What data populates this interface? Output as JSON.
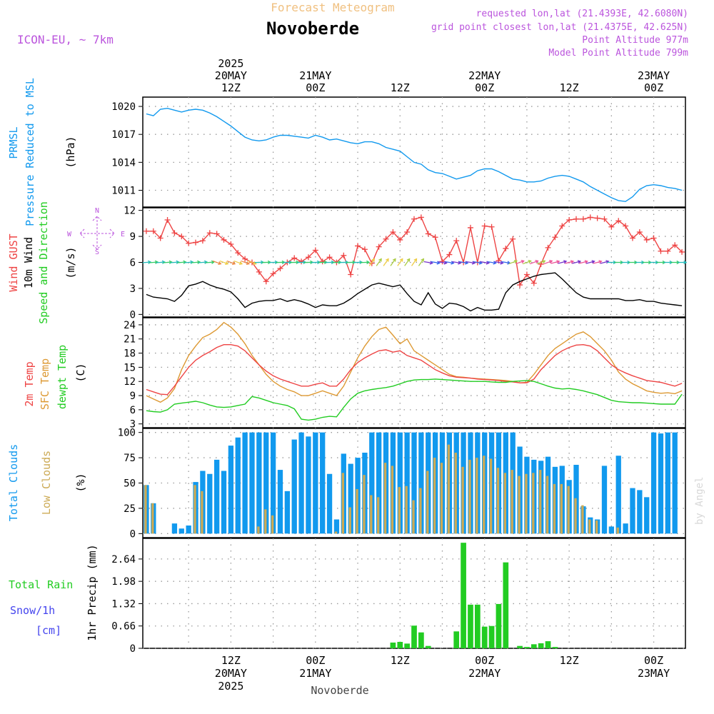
{
  "header": {
    "title": "Novoberde",
    "subtitle": "Forecast Meteogram",
    "model": "ICON-EU, ~ 7km",
    "requested": "requested lon,lat (21.4393E, 42.6080N)",
    "gridpoint": "grid point closest lon,lat (21.4375E, 42.625N)",
    "point_alt": "Point Altitude 977m",
    "model_alt": "Model Point Altitude 799m",
    "footer": "Novoberde",
    "credit": "by Angel"
  },
  "colors": {
    "pressure": "#1199ee",
    "gust": "#ee4444",
    "wind": "#000000",
    "temp2m": "#ee4444",
    "sfc": "#dd9933",
    "dewpt": "#22cc22",
    "total": "#1199ee",
    "low": "#ccaa55",
    "rain": "#22cc22",
    "snow": "#4444ee",
    "purple": "#bb55dd",
    "title_orange": "#f0c080"
  },
  "chart_data": {
    "type": "meteogram",
    "time": {
      "start": "2025-05-20 00Z",
      "step_hours": 1,
      "count": 77,
      "top_labels": [
        {
          "hour": 12,
          "lines": [
            "2025",
            "20MAY",
            "12Z"
          ]
        },
        {
          "hour": 24,
          "lines": [
            "21MAY",
            "00Z"
          ]
        },
        {
          "hour": 36,
          "lines": [
            "12Z"
          ]
        },
        {
          "hour": 48,
          "lines": [
            "22MAY",
            "00Z"
          ]
        },
        {
          "hour": 60,
          "lines": [
            "12Z"
          ]
        },
        {
          "hour": 72,
          "lines": [
            "23MAY",
            "00Z"
          ]
        }
      ],
      "bottom_labels": [
        {
          "hour": 12,
          "lines": [
            "12Z",
            "20MAY",
            "2025"
          ]
        },
        {
          "hour": 24,
          "lines": [
            "00Z",
            "21MAY"
          ]
        },
        {
          "hour": 36,
          "lines": [
            "12Z"
          ]
        },
        {
          "hour": 48,
          "lines": [
            "00Z",
            "22MAY"
          ]
        },
        {
          "hour": 60,
          "lines": [
            "12Z"
          ]
        },
        {
          "hour": 72,
          "lines": [
            "00Z",
            "23MAY"
          ]
        }
      ]
    },
    "panels": [
      {
        "id": "pressure",
        "unit": "(hPa)",
        "ylim": [
          1009.2,
          1021
        ],
        "yticks": [
          "1020",
          "1017",
          "1014",
          "1011"
        ],
        "labels": [
          "PRMSL",
          "Pressure Reduced to MSL"
        ],
        "series": [
          {
            "name": "PRMSL",
            "color": "#1199ee",
            "style": "line",
            "values": [
              1019.2,
              1019.0,
              1019.7,
              1019.8,
              1019.6,
              1019.4,
              1019.6,
              1019.7,
              1019.6,
              1019.3,
              1018.9,
              1018.4,
              1017.9,
              1017.3,
              1016.7,
              1016.4,
              1016.3,
              1016.4,
              1016.7,
              1016.9,
              1016.9,
              1016.8,
              1016.7,
              1016.6,
              1016.9,
              1016.7,
              1016.4,
              1016.5,
              1016.3,
              1016.1,
              1016.0,
              1016.2,
              1016.2,
              1016.0,
              1015.6,
              1015.4,
              1015.2,
              1014.6,
              1014.0,
              1013.8,
              1013.2,
              1012.9,
              1012.8,
              1012.5,
              1012.2,
              1012.4,
              1012.6,
              1013.1,
              1013.3,
              1013.3,
              1013.0,
              1012.6,
              1012.2,
              1012.1,
              1011.9,
              1011.9,
              1012.0,
              1012.3,
              1012.5,
              1012.6,
              1012.5,
              1012.2,
              1011.9,
              1011.4,
              1011.0,
              1010.6,
              1010.2,
              1009.9,
              1009.8,
              1010.3,
              1011.1,
              1011.5,
              1011.6,
              1011.5,
              1011.3,
              1011.2,
              1011.0
            ]
          }
        ]
      },
      {
        "id": "wind",
        "unit": "(m/s)",
        "ylim": [
          -0.3,
          12.3
        ],
        "yticks": [
          "12",
          "9",
          "6",
          "3",
          "0"
        ],
        "labels": [
          "Wind GUST",
          "10m Wind",
          "Speed and Direction"
        ],
        "compass": {
          "n": "N",
          "w": "W",
          "e": "E",
          "s": "S"
        },
        "series": [
          {
            "name": "Wind GUST",
            "color": "#ee4444",
            "style": "line-plus",
            "values": [
              9.6,
              9.6,
              8.8,
              10.9,
              9.4,
              9.0,
              8.2,
              8.3,
              8.5,
              9.4,
              9.3,
              8.6,
              8.1,
              7.1,
              6.4,
              6.0,
              4.9,
              3.8,
              4.7,
              5.3,
              6.0,
              6.5,
              6.1,
              6.6,
              7.4,
              6.1,
              6.6,
              6.0,
              6.8,
              4.6,
              7.9,
              7.5,
              5.9,
              7.8,
              8.7,
              9.5,
              8.6,
              9.5,
              11.0,
              11.2,
              9.3,
              8.9,
              6.1,
              6.9,
              8.5,
              6.0,
              10.0,
              6.0,
              10.2,
              10.1,
              6.2,
              7.6,
              8.7,
              3.4,
              4.6,
              3.6,
              5.8,
              7.7,
              8.9,
              10.2,
              10.9,
              11.0,
              11.0,
              11.2,
              11.1,
              11.0,
              10.1,
              10.8,
              10.2,
              8.8,
              9.5,
              8.6,
              8.8,
              7.3,
              7.3,
              8.0,
              7.2
            ]
          },
          {
            "name": "10m Wind",
            "color": "#000000",
            "style": "line",
            "values": [
              2.3,
              2.0,
              1.9,
              1.8,
              1.5,
              2.2,
              3.3,
              3.5,
              3.8,
              3.4,
              3.1,
              2.9,
              2.6,
              1.8,
              0.8,
              1.3,
              1.5,
              1.6,
              1.6,
              1.8,
              1.5,
              1.7,
              1.5,
              1.2,
              0.8,
              1.1,
              1.0,
              1.0,
              1.3,
              1.8,
              2.4,
              2.9,
              3.4,
              3.6,
              3.4,
              3.2,
              3.4,
              2.4,
              1.5,
              1.1,
              2.5,
              1.2,
              0.7,
              1.3,
              1.2,
              0.9,
              0.4,
              0.8,
              0.5,
              0.5,
              0.6,
              2.5,
              3.4,
              3.8,
              4.1,
              4.4,
              4.6,
              4.7,
              4.8,
              4.1,
              3.3,
              2.5,
              2.0,
              1.8,
              1.8,
              1.8,
              1.8,
              1.8,
              1.6,
              1.6,
              1.7,
              1.5,
              1.5,
              1.3,
              1.2,
              1.1,
              1.0
            ]
          }
        ]
      },
      {
        "id": "temp",
        "unit": "(C)",
        "ylim": [
          2.2,
          25.5
        ],
        "yticks": [
          "24",
          "21",
          "18",
          "15",
          "12",
          "9",
          "6",
          "3"
        ],
        "labels": [
          "2m Temp",
          "SFC Temp",
          "dewpt Temp"
        ],
        "series": [
          {
            "name": "SFC Temp",
            "color": "#dd9933",
            "style": "line",
            "values": [
              9.0,
              8.3,
              7.6,
              8.5,
              10.5,
              14.5,
              17.5,
              19.5,
              21.3,
              22.0,
              23.0,
              24.5,
              23.5,
              22.0,
              20.0,
              17.5,
              15.5,
              13.5,
              12.0,
              11.0,
              10.3,
              9.8,
              9.0,
              9.0,
              9.5,
              10.0,
              9.5,
              9.0,
              11.0,
              14.0,
              17.0,
              19.5,
              21.5,
              23.0,
              23.5,
              21.8,
              20.0,
              21.0,
              18.5,
              17.5,
              16.5,
              15.5,
              14.5,
              13.5,
              13.0,
              12.9,
              12.7,
              12.6,
              12.5,
              12.4,
              12.3,
              12.2,
              12.0,
              11.7,
              11.8,
              13.5,
              15.5,
              17.5,
              19.0,
              20.0,
              21.0,
              22.0,
              22.5,
              21.5,
              20.0,
              18.5,
              16.5,
              14.0,
              12.5,
              11.5,
              10.8,
              10.0,
              9.7,
              9.5,
              9.6,
              9.4,
              10.0
            ]
          },
          {
            "name": "2m Temp",
            "color": "#ee4444",
            "style": "line",
            "values": [
              10.3,
              9.8,
              9.3,
              9.2,
              11.0,
              13.0,
              15.0,
              16.5,
              17.5,
              18.3,
              19.2,
              19.8,
              19.8,
              19.5,
              18.5,
              17.0,
              15.5,
              14.2,
              13.2,
              12.5,
              12.0,
              11.5,
              11.0,
              11.0,
              11.4,
              11.7,
              11.0,
              11.0,
              12.5,
              14.5,
              16.0,
              17.0,
              17.8,
              18.5,
              18.7,
              18.2,
              18.5,
              17.5,
              17.0,
              16.5,
              15.5,
              14.5,
              13.8,
              13.2,
              12.9,
              12.8,
              12.7,
              12.5,
              12.4,
              12.3,
              12.2,
              12.0,
              11.9,
              11.7,
              11.7,
              12.5,
              14.5,
              16.0,
              17.5,
              18.5,
              19.2,
              19.7,
              19.8,
              19.5,
              18.5,
              17.0,
              15.5,
              14.5,
              13.8,
              13.2,
              12.7,
              12.2,
              12.0,
              11.8,
              11.4,
              11.0,
              11.6
            ]
          },
          {
            "name": "dewpt Temp",
            "color": "#22cc22",
            "style": "line",
            "values": [
              5.8,
              5.6,
              5.5,
              6.0,
              7.2,
              7.4,
              7.6,
              7.8,
              7.5,
              7.0,
              6.6,
              6.5,
              6.6,
              6.9,
              7.2,
              8.8,
              8.5,
              8.0,
              7.5,
              7.2,
              6.9,
              6.2,
              4.0,
              3.8,
              4.0,
              4.4,
              4.6,
              4.5,
              6.5,
              8.3,
              9.5,
              10.0,
              10.3,
              10.5,
              10.7,
              11.0,
              11.5,
              12.0,
              12.3,
              12.4,
              12.4,
              12.5,
              12.4,
              12.3,
              12.2,
              12.1,
              12.0,
              12.0,
              12.0,
              11.9,
              11.8,
              11.8,
              12.0,
              12.1,
              12.2,
              12.0,
              11.5,
              11.0,
              10.6,
              10.4,
              10.5,
              10.3,
              10.0,
              9.6,
              9.2,
              8.6,
              8.0,
              7.7,
              7.6,
              7.5,
              7.5,
              7.4,
              7.3,
              7.2,
              7.2,
              7.2,
              9.3
            ]
          }
        ]
      },
      {
        "id": "clouds",
        "unit": "(%)",
        "ylim": [
          -4,
          104
        ],
        "yticks": [
          "100",
          "75",
          "50",
          "25",
          "0"
        ],
        "labels": [
          "Total Clouds",
          "Low Clouds"
        ],
        "series": [
          {
            "name": "Total Clouds",
            "color": "#1199ee",
            "style": "bar",
            "values": [
              48,
              30,
              0,
              0,
              10,
              5,
              8,
              51,
              62,
              59,
              73,
              62,
              87,
              95,
              100,
              100,
              100,
              100,
              100,
              63,
              42,
              93,
              100,
              96,
              100,
              100,
              59,
              14,
              79,
              69,
              75,
              80,
              100,
              100,
              100,
              100,
              100,
              100,
              100,
              100,
              100,
              100,
              100,
              100,
              100,
              100,
              100,
              100,
              100,
              100,
              100,
              100,
              100,
              86,
              76,
              73,
              72,
              76,
              66,
              67,
              53,
              68,
              27,
              16,
              14,
              67,
              7,
              77,
              10,
              45,
              43,
              36,
              100,
              99,
              100,
              100,
              0
            ]
          },
          {
            "name": "Low Clouds",
            "color": "#ccaa55",
            "style": "bar",
            "values": [
              48,
              30,
              0,
              0,
              0,
              0,
              0,
              48,
              42,
              0,
              0,
              0,
              0,
              0,
              0,
              0,
              7,
              24,
              18,
              0,
              0,
              0,
              0,
              0,
              0,
              0,
              0,
              2,
              60,
              26,
              44,
              58,
              38,
              36,
              70,
              67,
              46,
              47,
              33,
              45,
              62,
              75,
              70,
              88,
              80,
              66,
              73,
              75,
              77,
              74,
              65,
              60,
              63,
              57,
              59,
              60,
              63,
              57,
              49,
              49,
              47,
              35,
              28,
              14,
              13,
              0,
              0,
              6,
              0,
              0,
              0,
              0,
              0,
              0,
              0,
              0,
              0
            ]
          }
        ]
      },
      {
        "id": "precip",
        "unit": "1hr Precip (mm)",
        "ylim": [
          0,
          3.25
        ],
        "yticks": [
          "2.64",
          "1.98",
          "1.32",
          "0.66",
          "0"
        ],
        "labels": [
          "Total  Rain",
          "Snow/1h",
          "[cm]"
        ],
        "series": [
          {
            "name": "Total Rain",
            "color": "#22cc22",
            "style": "bar",
            "values": [
              0,
              0,
              0,
              0,
              0,
              0,
              0,
              0,
              0,
              0,
              0,
              0,
              0,
              0,
              0,
              0,
              0,
              0,
              0,
              0,
              0,
              0,
              0,
              0,
              0,
              0,
              0,
              0,
              0,
              0,
              0,
              0,
              0,
              0,
              0,
              0.17,
              0.19,
              0.14,
              0.67,
              0.47,
              0.07,
              0,
              0,
              0,
              0.5,
              3.12,
              1.29,
              1.29,
              0.64,
              0.66,
              1.31,
              2.54,
              0,
              0.07,
              0.04,
              0.12,
              0.15,
              0.21,
              0.04,
              0,
              0,
              0,
              0,
              0,
              0,
              0,
              0,
              0,
              0,
              0,
              0,
              0,
              0,
              0,
              0,
              0,
              0
            ]
          }
        ]
      }
    ]
  }
}
